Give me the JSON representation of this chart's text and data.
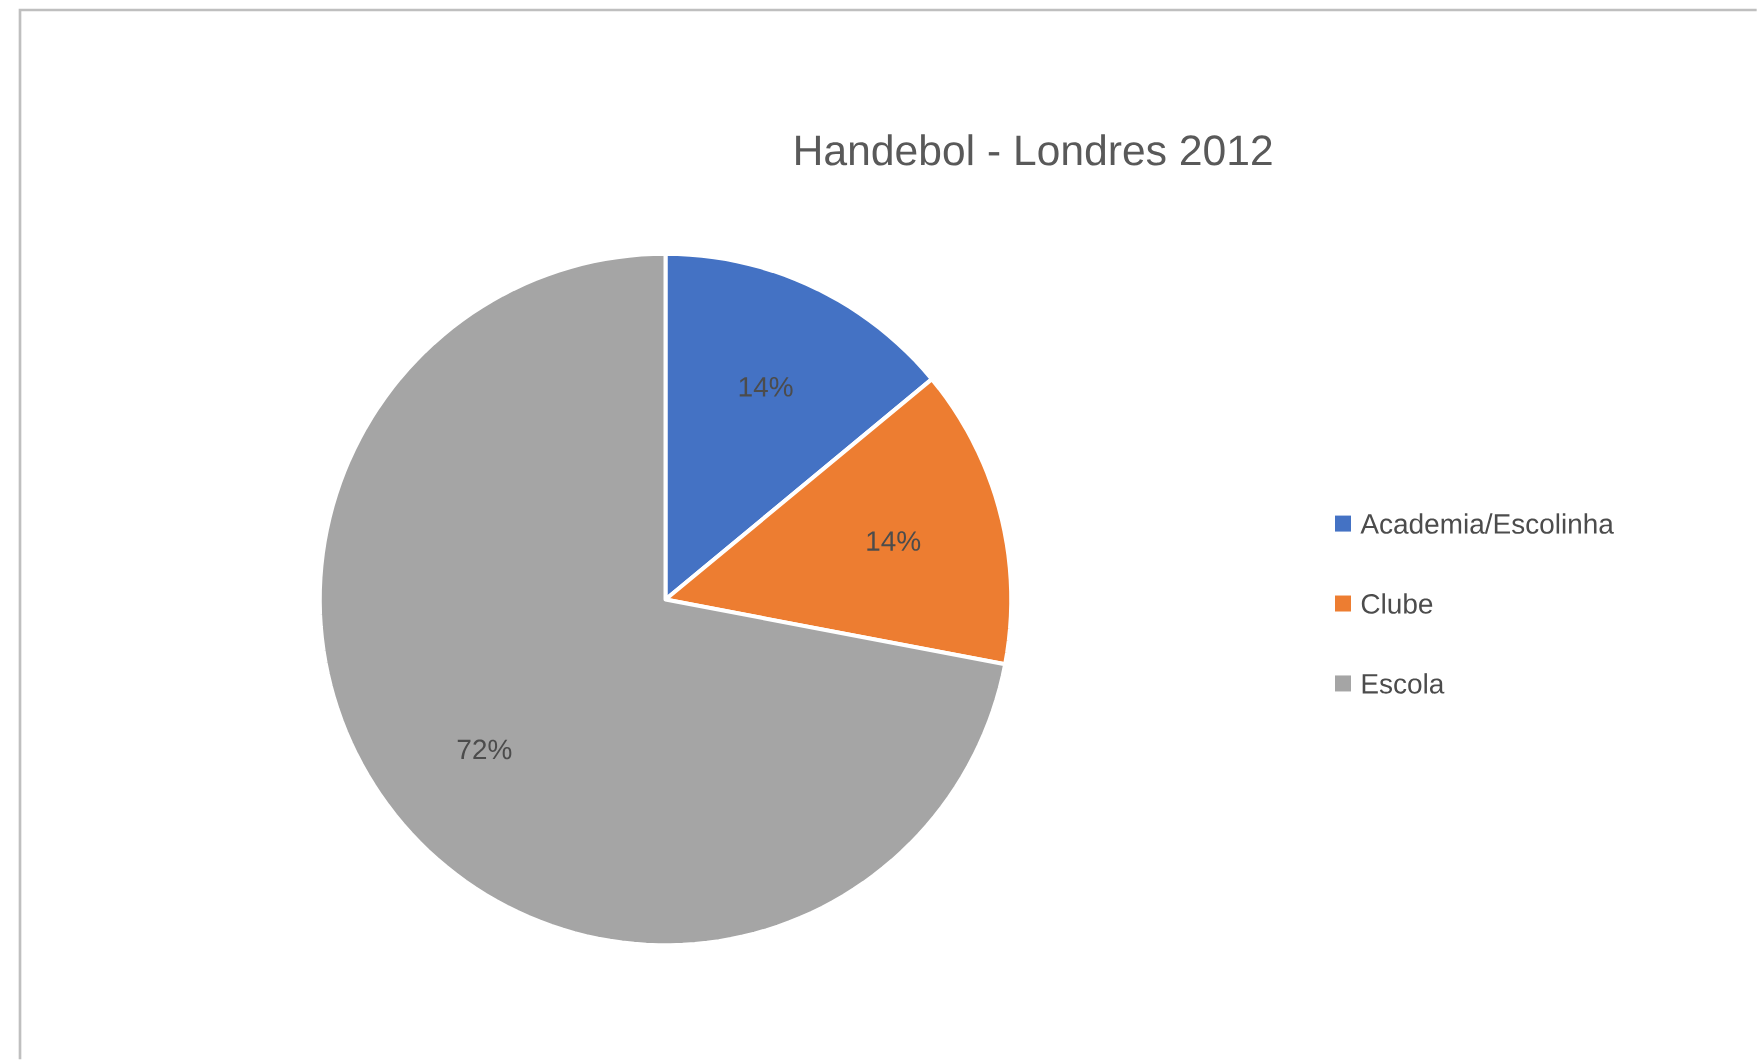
{
  "chart_data": {
    "type": "pie",
    "title": "Handebol - Londres 2012",
    "categories": [
      "Academia/Escolinha",
      "Clube",
      "Escola"
    ],
    "values": [
      14,
      14,
      72
    ],
    "value_labels": [
      "14%",
      "14%",
      "72%"
    ],
    "colors": [
      "#4472c4",
      "#ed7d31",
      "#a5a5a5"
    ],
    "legend": "right"
  }
}
